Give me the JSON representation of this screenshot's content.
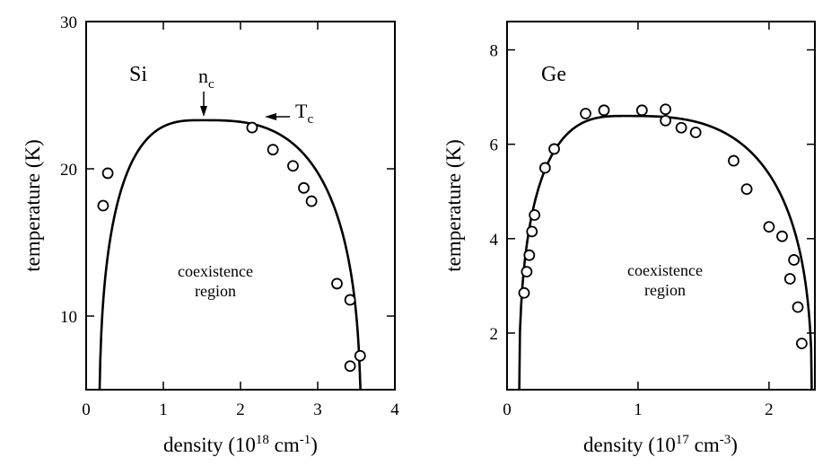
{
  "chart_data": [
    {
      "type": "scatter",
      "panel_label": "Si",
      "xlabel_main": "density (10",
      "xlabel_exp": "18",
      "xlabel_mid": " cm",
      "xlabel_exp2": "-1",
      "xlabel_end": ")",
      "ylabel": "temperature (K)",
      "xlim": [
        0,
        4
      ],
      "ylim": [
        5,
        30
      ],
      "xticks": [
        0,
        1,
        2,
        3,
        4
      ],
      "yticks": [
        10,
        20,
        30
      ],
      "region_line1": "coexistence",
      "region_line2": "region",
      "annotations": {
        "nc_main": "n",
        "nc_sub": "c",
        "tc_main": "T",
        "tc_sub": "c",
        "nc_x": 1.5,
        "tc_x": 2.15,
        "tc_y": 23.3
      },
      "series": [
        {
          "kind": "points",
          "x": [
            0.22,
            0.28,
            2.15,
            2.42,
            2.68,
            2.82,
            2.92,
            3.25,
            3.42,
            3.42,
            3.55
          ],
          "y": [
            17.5,
            19.7,
            22.8,
            21.3,
            20.2,
            18.7,
            17.8,
            12.2,
            11.1,
            6.6,
            7.3
          ]
        },
        {
          "kind": "fit",
          "nc": 1.5,
          "tc": 23.3,
          "x_left": 0.17,
          "x_right": 3.56,
          "y_min": 5
        }
      ]
    },
    {
      "type": "scatter",
      "panel_label": "Ge",
      "xlabel_main": "density (10",
      "xlabel_exp": "17",
      "xlabel_mid": " cm",
      "xlabel_exp2": "-3",
      "xlabel_end": ")",
      "ylabel": "temperature (K)",
      "xlim": [
        0,
        2.35
      ],
      "ylim": [
        0.8,
        8.6
      ],
      "xticks": [
        0,
        1,
        2
      ],
      "yticks": [
        2,
        4,
        6,
        8
      ],
      "region_line1": "coexistence",
      "region_line2": "region",
      "series": [
        {
          "kind": "points",
          "x": [
            0.13,
            0.15,
            0.17,
            0.19,
            0.21,
            0.29,
            0.36,
            0.6,
            0.74,
            1.03,
            1.21,
            1.21,
            1.33,
            1.44,
            1.73,
            1.83,
            2.0,
            2.1,
            2.16,
            2.19,
            2.22,
            2.25
          ],
          "y": [
            2.85,
            3.3,
            3.65,
            4.15,
            4.5,
            5.5,
            5.9,
            6.65,
            6.72,
            6.72,
            6.74,
            6.5,
            6.35,
            6.25,
            5.65,
            5.05,
            4.25,
            4.05,
            3.15,
            3.55,
            2.55,
            1.78
          ]
        },
        {
          "kind": "fit",
          "nc": 0.9,
          "tc": 6.6,
          "x_left": 0.09,
          "x_right": 2.33,
          "y_min": 0.8
        }
      ]
    }
  ]
}
